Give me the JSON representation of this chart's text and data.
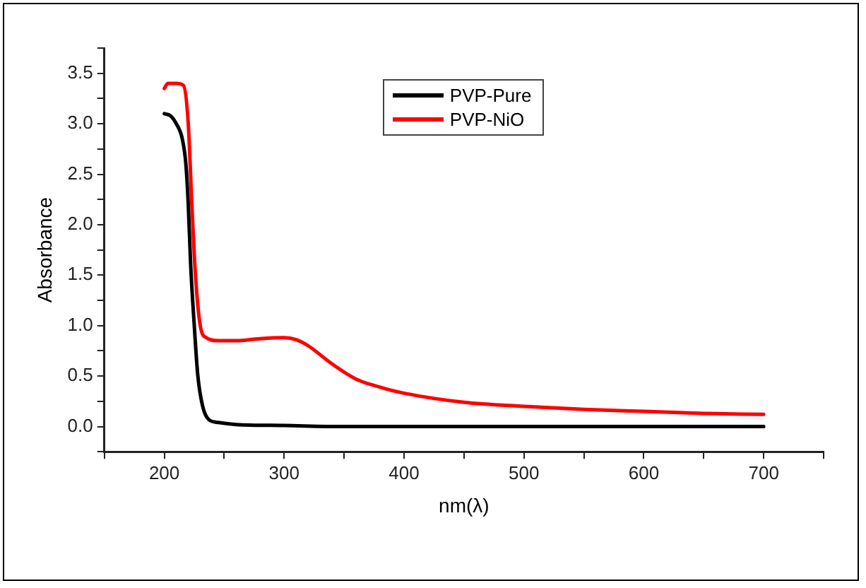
{
  "chart_data": {
    "type": "line",
    "xlabel": "nm(λ)",
    "ylabel": "Absorbance",
    "xlim": [
      150,
      750
    ],
    "ylim": [
      -0.25,
      3.75
    ],
    "xticks": [
      {
        "value": 150,
        "label": null
      },
      200,
      {
        "value": 250,
        "label": null
      },
      300,
      {
        "value": 350,
        "label": null
      },
      400,
      {
        "value": 450,
        "label": null
      },
      500,
      {
        "value": 550,
        "label": null
      },
      600,
      {
        "value": 650,
        "label": null
      },
      700,
      {
        "value": 750,
        "label": null
      }
    ],
    "yticks": [
      {
        "value": -0.25,
        "label": null
      },
      {
        "value": 0,
        "label": "0.0"
      },
      {
        "value": 0.25,
        "label": null
      },
      0.5,
      {
        "value": 0.75,
        "label": null
      },
      {
        "value": 1,
        "label": "1.0"
      },
      {
        "value": 1.25,
        "label": null
      },
      1.5,
      {
        "value": 1.75,
        "label": null
      },
      {
        "value": 2,
        "label": "2.0"
      },
      {
        "value": 2.25,
        "label": null
      },
      2.5,
      {
        "value": 2.75,
        "label": null
      },
      {
        "value": 3,
        "label": "3.0"
      },
      {
        "value": 3.25,
        "label": null
      },
      3.5,
      {
        "value": 3.75,
        "label": null
      }
    ],
    "grid": false,
    "legend": "top",
    "marker": "none",
    "line_style": "solid",
    "series": [
      {
        "name": "PVP-Pure",
        "color": "#000000",
        "x": [
          200,
          205,
          210,
          215,
          218,
          220,
          222,
          225,
          228,
          232,
          237,
          245,
          260,
          300,
          350,
          700
        ],
        "values": [
          3.1,
          3.08,
          3.0,
          2.85,
          2.6,
          2.2,
          1.6,
          1.0,
          0.5,
          0.2,
          0.07,
          0.04,
          0.02,
          0.01,
          0,
          0
        ]
      },
      {
        "name": "PVP-NiO",
        "color": "#ff0000",
        "x": [
          200,
          203,
          210,
          216,
          220,
          223,
          226,
          230,
          235,
          245,
          260,
          280,
          300,
          310,
          320,
          340,
          360,
          380,
          400,
          450,
          500,
          550,
          600,
          650,
          700
        ],
        "values": [
          3.35,
          3.4,
          3.4,
          3.38,
          3.0,
          2.2,
          1.5,
          1.0,
          0.88,
          0.85,
          0.85,
          0.87,
          0.88,
          0.86,
          0.8,
          0.62,
          0.47,
          0.39,
          0.33,
          0.24,
          0.2,
          0.17,
          0.15,
          0.13,
          0.12
        ]
      }
    ]
  }
}
